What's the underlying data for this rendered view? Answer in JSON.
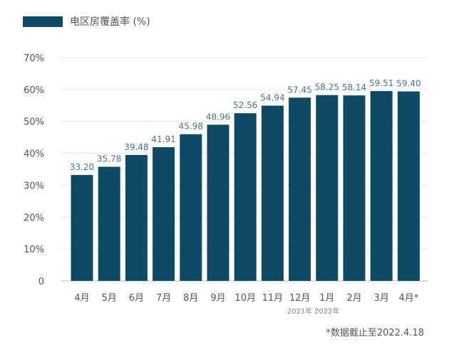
{
  "chart_data": {
    "type": "bar",
    "title": "",
    "xlabel": "",
    "ylabel": "",
    "categories": [
      "4月",
      "5月",
      "6月",
      "7月",
      "8月",
      "9月",
      "10月",
      "11月",
      "12月",
      "1月",
      "2月",
      "3月",
      "4月*"
    ],
    "series": [
      {
        "name": "电区房覆盖率 (%)",
        "values": [
          33.2,
          35.78,
          39.48,
          41.91,
          45.98,
          48.96,
          52.56,
          54.94,
          57.45,
          58.25,
          58.14,
          59.51,
          59.4
        ]
      }
    ],
    "value_labels": [
      "33.20",
      "35.78",
      "39.48",
      "41.91",
      "45.98",
      "48.96",
      "52.56",
      "54.94",
      "57.45",
      "58.25",
      "58.14",
      "59.51",
      "59.40"
    ],
    "ylim": [
      0,
      70
    ],
    "y_ticks": [
      0,
      10,
      20,
      30,
      40,
      50,
      60,
      70
    ],
    "y_tick_labels": [
      "0",
      "10%",
      "20%",
      "30%",
      "40%",
      "50%",
      "60%",
      "70%"
    ],
    "year_labels": [
      {
        "category_index": 8,
        "text": "2021年"
      },
      {
        "category_index": 9,
        "text": "2022年"
      }
    ],
    "grid": true,
    "legend_position": "top-left",
    "bar_color": "#0d4a63",
    "grid_color": "#e6e6e6"
  },
  "legend": {
    "label": "电区房覆盖率 (%)"
  },
  "footnote": "*数据截止至2022.4.18"
}
